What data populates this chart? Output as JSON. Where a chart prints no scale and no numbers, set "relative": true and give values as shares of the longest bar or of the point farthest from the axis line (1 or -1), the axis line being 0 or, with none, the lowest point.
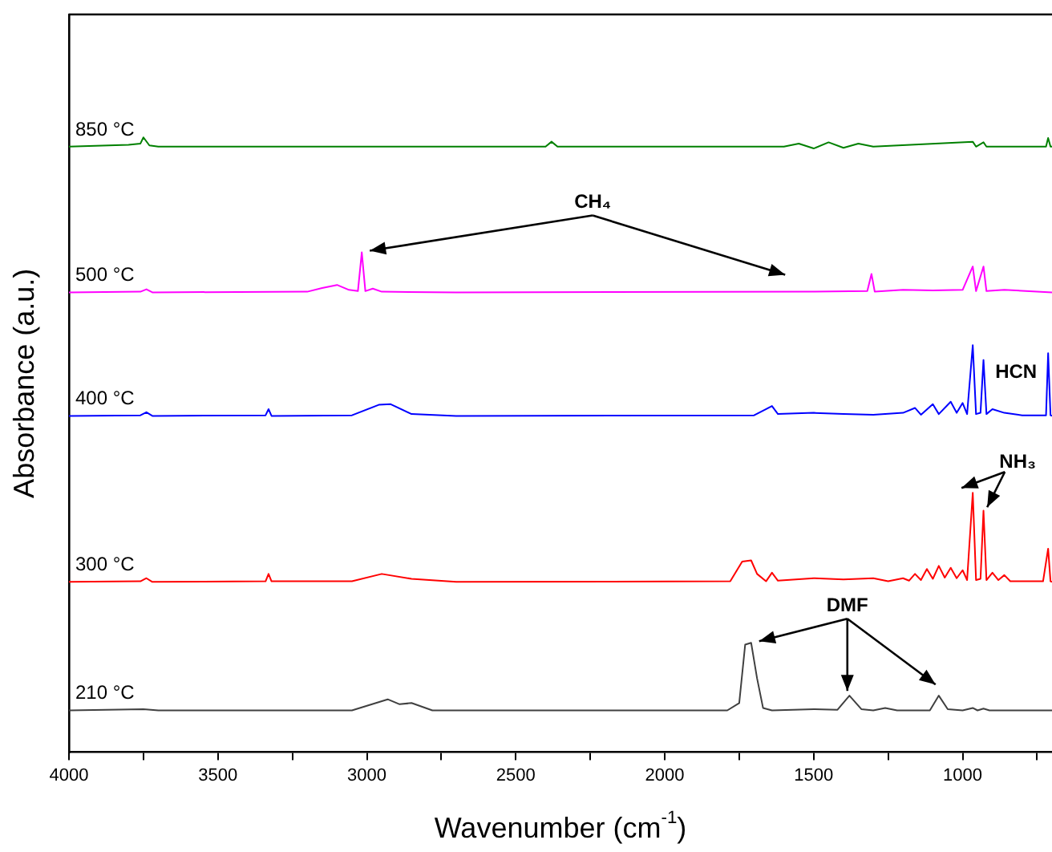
{
  "chart_data": {
    "type": "line",
    "relative": true,
    "xlabel": "Wavenumber (cm$^{-1}$)",
    "ylabel": "Absorbance (a.u.)",
    "legend": false,
    "grid": false,
    "marker": "none",
    "line_style": "solid",
    "xlim": [
      4000,
      700
    ],
    "xticks": [
      4000,
      {
        "value": 3750,
        "label": null
      },
      3500,
      {
        "value": 3250,
        "label": null
      },
      3000,
      {
        "value": 2750,
        "label": null
      },
      2500,
      {
        "value": 2250,
        "label": null
      },
      2000,
      {
        "value": 1750,
        "label": null
      },
      1500,
      {
        "value": 1250,
        "label": null
      },
      1000,
      {
        "value": 750,
        "label": null
      }
    ],
    "annotations": [
      {
        "text": "CH₄",
        "x": 3017,
        "y": 0.813
      },
      {
        "text": "HCN",
        "x": 713,
        "y": 0.649
      },
      {
        "text": "NH₃",
        "x": 966,
        "y": 0.422
      },
      {
        "text": "DMF",
        "x": 1710,
        "y": 0.178
      }
    ],
    "series": [
      {
        "name": "850 °C",
        "color": "#008000",
        "x": [
          4000,
          3800,
          3760,
          3750,
          3730,
          3700,
          3400,
          2400,
          2380,
          2360,
          1600,
          1550,
          1500,
          1450,
          1400,
          1350,
          1300,
          966,
          955,
          930,
          920,
          720,
          713,
          705,
          700
        ],
        "values": [
          0.985,
          0.988,
          0.99,
          1.0,
          0.987,
          0.985,
          0.985,
          0.985,
          0.993,
          0.985,
          0.985,
          0.99,
          0.982,
          0.992,
          0.983,
          0.99,
          0.985,
          0.993,
          0.985,
          0.992,
          0.985,
          0.985,
          0.999,
          0.985,
          0.985
        ]
      },
      {
        "name": "500 °C",
        "color": "#ff00ff",
        "x": [
          4000,
          3760,
          3740,
          3720,
          3200,
          3150,
          3100,
          3060,
          3030,
          3017,
          3005,
          2980,
          2950,
          2700,
          1500,
          1320,
          1306,
          1295,
          1200,
          1100,
          1000,
          966,
          955,
          930,
          920,
          860,
          700
        ],
        "values": [
          0.748,
          0.749,
          0.753,
          0.748,
          0.749,
          0.755,
          0.76,
          0.752,
          0.75,
          0.813,
          0.75,
          0.754,
          0.749,
          0.748,
          0.749,
          0.75,
          0.778,
          0.749,
          0.752,
          0.751,
          0.752,
          0.79,
          0.75,
          0.79,
          0.75,
          0.752,
          0.748
        ]
      },
      {
        "name": "400 °C",
        "color": "#0000ff",
        "x": [
          4000,
          3760,
          3740,
          3720,
          3340,
          3330,
          3320,
          3050,
          2960,
          2920,
          2850,
          2700,
          1700,
          1640,
          1620,
          1500,
          1400,
          1300,
          1200,
          1160,
          1140,
          1100,
          1080,
          1040,
          1020,
          1000,
          985,
          966,
          955,
          940,
          930,
          920,
          900,
          860,
          800,
          720,
          713,
          705,
          700
        ],
        "values": [
          0.547,
          0.548,
          0.553,
          0.547,
          0.548,
          0.558,
          0.547,
          0.548,
          0.565,
          0.566,
          0.55,
          0.547,
          0.548,
          0.563,
          0.55,
          0.552,
          0.55,
          0.549,
          0.552,
          0.56,
          0.549,
          0.566,
          0.55,
          0.57,
          0.552,
          0.568,
          0.55,
          0.662,
          0.55,
          0.552,
          0.638,
          0.55,
          0.558,
          0.552,
          0.548,
          0.548,
          0.649,
          0.548,
          0.547
        ]
      },
      {
        "name": "300 °C",
        "color": "#ff0000",
        "x": [
          4000,
          3760,
          3740,
          3720,
          3340,
          3330,
          3320,
          3050,
          2950,
          2850,
          2700,
          1780,
          1740,
          1710,
          1690,
          1660,
          1640,
          1620,
          1500,
          1400,
          1300,
          1250,
          1200,
          1180,
          1160,
          1140,
          1120,
          1100,
          1080,
          1060,
          1040,
          1020,
          1000,
          985,
          966,
          955,
          940,
          930,
          920,
          900,
          880,
          860,
          840,
          730,
          713,
          705,
          700
        ],
        "values": [
          0.277,
          0.278,
          0.283,
          0.277,
          0.278,
          0.29,
          0.278,
          0.278,
          0.29,
          0.282,
          0.277,
          0.278,
          0.31,
          0.312,
          0.29,
          0.278,
          0.292,
          0.279,
          0.283,
          0.281,
          0.283,
          0.278,
          0.283,
          0.279,
          0.29,
          0.28,
          0.298,
          0.282,
          0.303,
          0.284,
          0.3,
          0.283,
          0.296,
          0.28,
          0.422,
          0.28,
          0.282,
          0.393,
          0.28,
          0.292,
          0.28,
          0.288,
          0.278,
          0.278,
          0.331,
          0.278,
          0.277
        ]
      },
      {
        "name": "210 °C",
        "color": "#404040",
        "x": [
          4000,
          3750,
          3700,
          3050,
          2930,
          2890,
          2850,
          2780,
          1790,
          1750,
          1730,
          1710,
          1690,
          1670,
          1640,
          1500,
          1420,
          1380,
          1340,
          1300,
          1260,
          1220,
          1110,
          1080,
          1050,
          1000,
          966,
          950,
          930,
          910,
          700
        ],
        "values": [
          0.068,
          0.07,
          0.068,
          0.068,
          0.086,
          0.078,
          0.08,
          0.068,
          0.068,
          0.08,
          0.175,
          0.178,
          0.12,
          0.072,
          0.068,
          0.07,
          0.069,
          0.092,
          0.07,
          0.068,
          0.072,
          0.068,
          0.068,
          0.092,
          0.07,
          0.068,
          0.072,
          0.068,
          0.071,
          0.068,
          0.068
        ]
      }
    ]
  }
}
